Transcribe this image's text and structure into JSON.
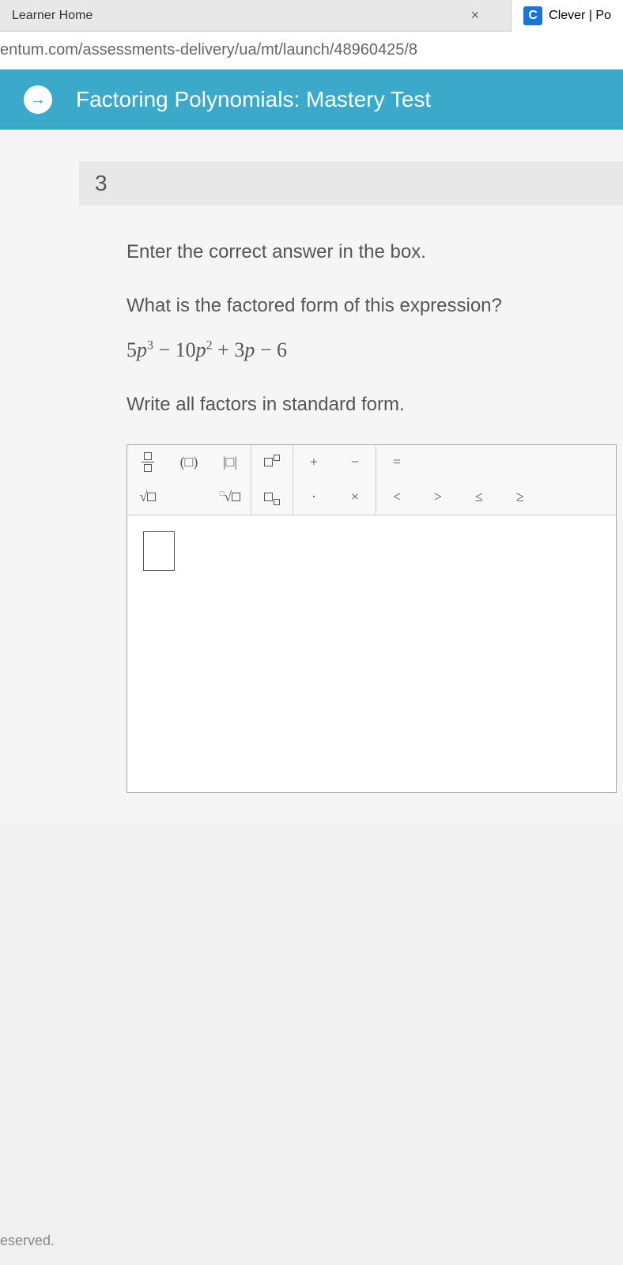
{
  "browser": {
    "tab_left_partial": "Learner Home",
    "tab_right": "Clever | Po",
    "clever_badge": "C",
    "url": "entum.com/assessments-delivery/ua/mt/launch/48960425/8"
  },
  "header": {
    "arrow": "→",
    "title": "Factoring Polynomials: Mastery Test"
  },
  "question": {
    "number": "3",
    "instruction": "Enter the correct answer in the box.",
    "prompt": "What is the factored form of this expression?",
    "expression_parts": {
      "coef1": "5",
      "var1": "p",
      "exp1": "3",
      "op1": " − ",
      "coef2": "10",
      "var2": "p",
      "exp2": "2",
      "op2": " + ",
      "coef3": "3",
      "var3": "p",
      "op3": " − ",
      "coef4": "6"
    },
    "note": "Write all factors in standard form."
  },
  "toolbar": {
    "row1": {
      "frac": "fraction",
      "paren": "(□)",
      "abs": "|□|",
      "exp": "exponent",
      "plus": "+",
      "minus": "−",
      "equals": "="
    },
    "row2": {
      "sqrt": "√",
      "nroot": "ⁿ√",
      "sub": "subscript",
      "dot": "·",
      "times": "×",
      "lt": "<",
      "gt": ">",
      "le": "≤",
      "ge": "≥"
    }
  },
  "footer": "eserved.",
  "colors": {
    "header_bg": "#3ba9c9",
    "text": "#555555",
    "border": "#aaaaaa",
    "clever": "#1976d2"
  }
}
